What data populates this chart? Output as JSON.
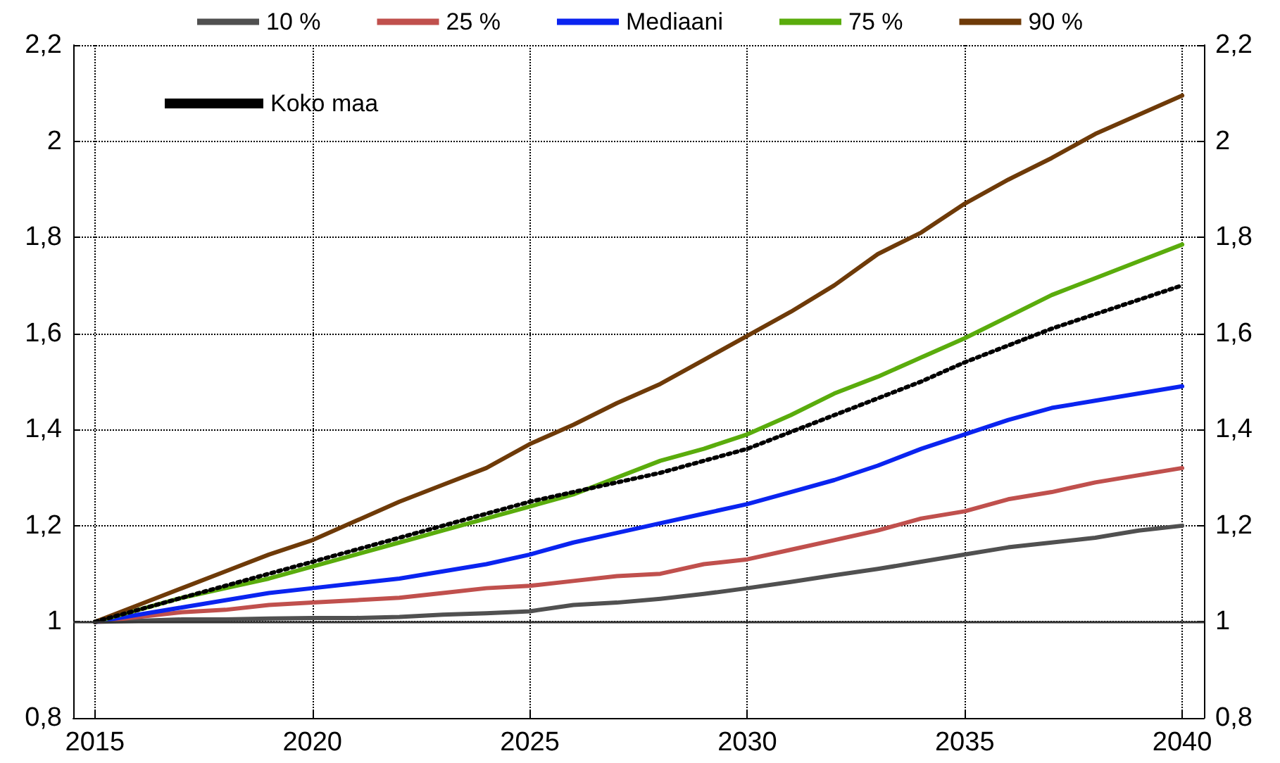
{
  "chart_data": {
    "type": "line",
    "x": [
      2015,
      2016,
      2017,
      2018,
      2019,
      2020,
      2021,
      2022,
      2023,
      2024,
      2025,
      2026,
      2027,
      2028,
      2029,
      2030,
      2031,
      2032,
      2033,
      2034,
      2035,
      2036,
      2037,
      2038,
      2039,
      2040
    ],
    "xlim": [
      2014.5,
      2040.5
    ],
    "xticks": [
      2015,
      2020,
      2025,
      2030,
      2035,
      2040
    ],
    "ylim": [
      0.8,
      2.2
    ],
    "yticks": [
      {
        "value": 0.8,
        "label": "0,8"
      },
      {
        "value": 1,
        "label": "1"
      },
      {
        "value": 1.2,
        "label": "1,2"
      },
      {
        "value": 1.4,
        "label": "1,4"
      },
      {
        "value": 1.6,
        "label": "1,6"
      },
      {
        "value": 1.8,
        "label": "1,8"
      },
      {
        "value": 2,
        "label": "2"
      },
      {
        "value": 2.2,
        "label": "2,2"
      }
    ],
    "y2lim": [
      0.8,
      2.2
    ],
    "y2ticks": [
      {
        "value": 0.8,
        "label": "0,8"
      },
      {
        "value": 1,
        "label": "1"
      },
      {
        "value": 1.2,
        "label": "1,2"
      },
      {
        "value": 1.4,
        "label": "1,4"
      },
      {
        "value": 1.6,
        "label": "1,6"
      },
      {
        "value": 1.8,
        "label": "1,8"
      },
      {
        "value": 2,
        "label": "2"
      },
      {
        "value": 2.2,
        "label": "2,2"
      }
    ],
    "grid": true,
    "legend": "top",
    "marker": "none",
    "line_style": "solid",
    "ref_lines": [
      {
        "axis": "y",
        "value": 1,
        "color": "#333333"
      }
    ],
    "series": [
      {
        "name": "10 %",
        "color": "#505050",
        "values": [
          1,
          1.002,
          1.005,
          1.005,
          1.007,
          1.008,
          1.008,
          1.01,
          1.015,
          1.018,
          1.022,
          1.035,
          1.04,
          1.048,
          1.058,
          1.07,
          1.083,
          1.097,
          1.11,
          1.125,
          1.14,
          1.155,
          1.165,
          1.175,
          1.19,
          1.2
        ]
      },
      {
        "name": "25 %",
        "color": "#c0504d",
        "values": [
          1,
          1.01,
          1.02,
          1.025,
          1.035,
          1.04,
          1.045,
          1.05,
          1.06,
          1.07,
          1.075,
          1.085,
          1.095,
          1.1,
          1.12,
          1.13,
          1.15,
          1.17,
          1.19,
          1.215,
          1.23,
          1.255,
          1.27,
          1.29,
          1.305,
          1.32
        ]
      },
      {
        "name": "Mediaani",
        "color": "#0a24f0",
        "values": [
          1,
          1.015,
          1.03,
          1.045,
          1.06,
          1.07,
          1.08,
          1.09,
          1.105,
          1.12,
          1.14,
          1.165,
          1.185,
          1.205,
          1.225,
          1.245,
          1.27,
          1.295,
          1.325,
          1.36,
          1.39,
          1.42,
          1.445,
          1.46,
          1.475,
          1.49
        ]
      },
      {
        "name": "75 %",
        "color": "#5aac0c",
        "values": [
          1,
          1.025,
          1.05,
          1.07,
          1.09,
          1.115,
          1.14,
          1.165,
          1.19,
          1.215,
          1.24,
          1.265,
          1.3,
          1.335,
          1.36,
          1.39,
          1.43,
          1.475,
          1.51,
          1.55,
          1.59,
          1.635,
          1.68,
          1.715,
          1.75,
          1.785
        ]
      },
      {
        "name": "90 %",
        "color": "#6e3a08",
        "values": [
          1,
          1.035,
          1.07,
          1.105,
          1.14,
          1.17,
          1.21,
          1.25,
          1.285,
          1.32,
          1.37,
          1.41,
          1.455,
          1.495,
          1.545,
          1.595,
          1.645,
          1.7,
          1.765,
          1.81,
          1.87,
          1.92,
          1.965,
          2.015,
          2.055,
          2.095
        ]
      },
      {
        "name": "Koko maa",
        "color": "#000000",
        "line_style": "dotted",
        "values": [
          1,
          1.025,
          1.05,
          1.075,
          1.1,
          1.125,
          1.15,
          1.175,
          1.2,
          1.225,
          1.25,
          1.27,
          1.29,
          1.31,
          1.335,
          1.36,
          1.395,
          1.43,
          1.465,
          1.5,
          1.54,
          1.575,
          1.61,
          1.64,
          1.67,
          1.7
        ]
      }
    ]
  }
}
